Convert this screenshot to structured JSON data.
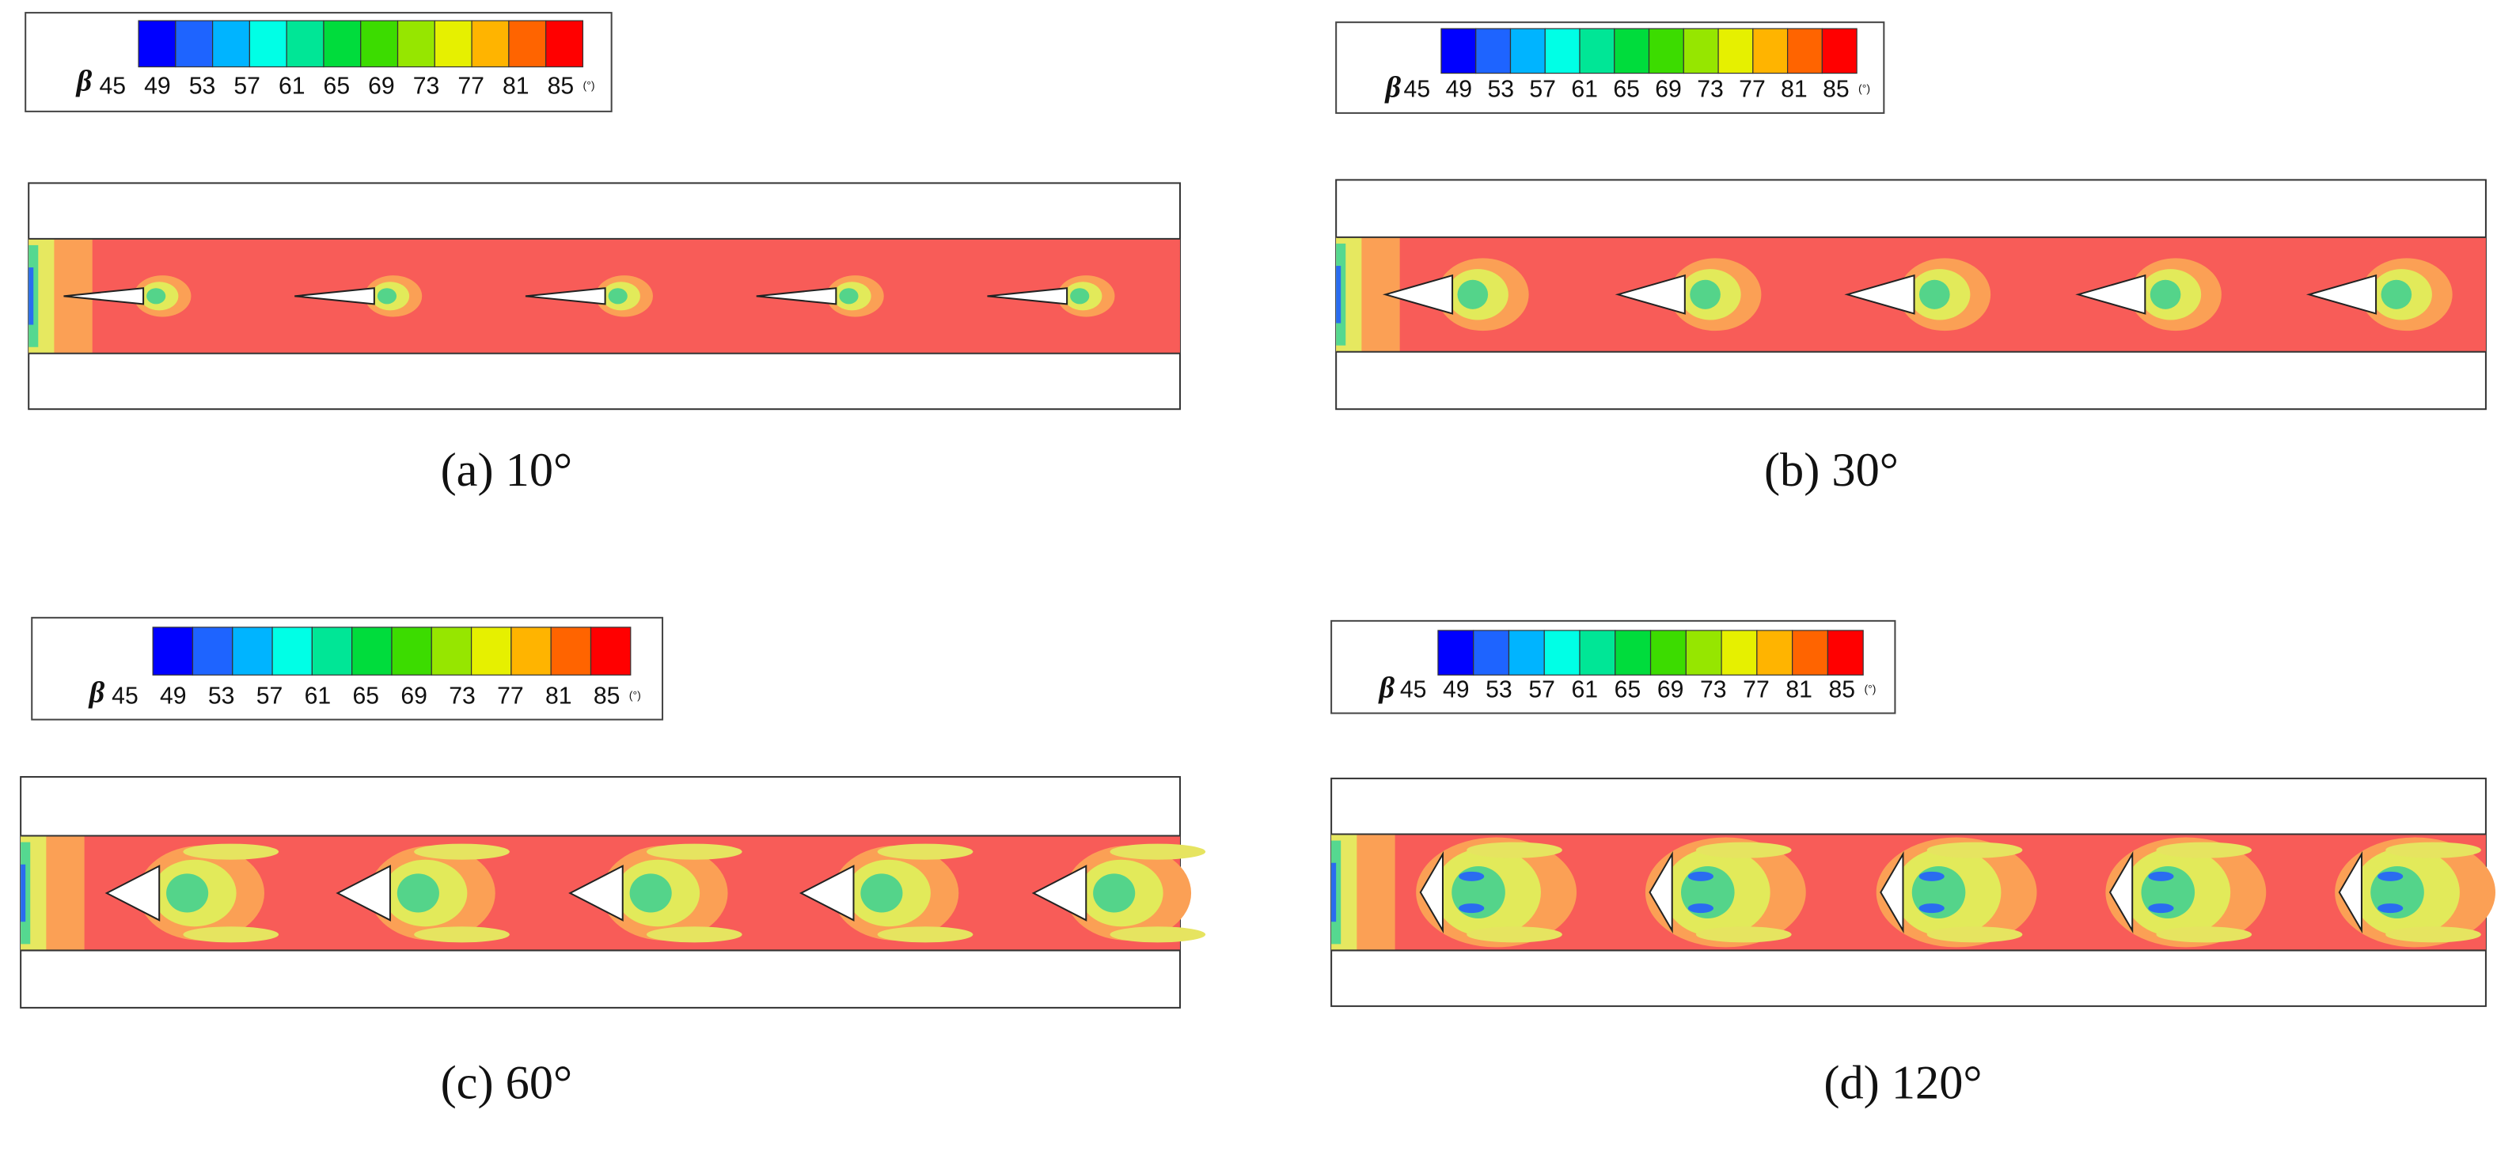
{
  "legend": {
    "symbol": "β",
    "ticks": [
      "45",
      "49",
      "53",
      "57",
      "61",
      "65",
      "69",
      "73",
      "77",
      "81",
      "85"
    ],
    "unit": "(°)"
  },
  "panels": [
    {
      "caption": "(a) 10°"
    },
    {
      "caption": "(b) 30°"
    },
    {
      "caption": "(c) 60°"
    },
    {
      "caption": "(d) 120°"
    }
  ]
}
